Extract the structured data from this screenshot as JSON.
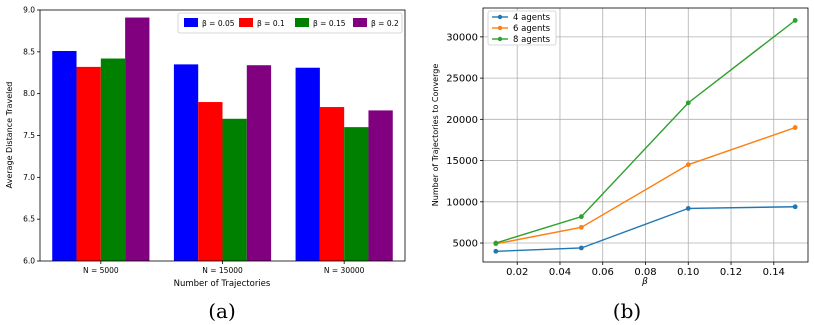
{
  "chart_data": [
    {
      "type": "bar",
      "caption": "(a)",
      "title": "",
      "xlabel": "Number of Trajectories",
      "ylabel": "Average Distance Traveled",
      "categories": [
        "N = 5000",
        "N = 15000",
        "N = 30000"
      ],
      "series": [
        {
          "name": "β = 0.05",
          "color": "#0000ff",
          "values": [
            8.51,
            8.35,
            8.31
          ]
        },
        {
          "name": "β = 0.1",
          "color": "#ff0000",
          "values": [
            8.32,
            7.9,
            7.84
          ]
        },
        {
          "name": "β = 0.15",
          "color": "#008000",
          "values": [
            8.42,
            7.7,
            7.6
          ]
        },
        {
          "name": "β = 0.2",
          "color": "#800080",
          "values": [
            8.91,
            8.34,
            7.8
          ]
        }
      ],
      "ylim": [
        6.0,
        9.0
      ],
      "yticks": [
        "6.0",
        "6.5",
        "7.0",
        "7.5",
        "8.0",
        "8.5",
        "9.0"
      ],
      "grid": false,
      "legend": "top-right, horizontal"
    },
    {
      "type": "line",
      "caption": "(b)",
      "title": "",
      "xlabel": "β",
      "ylabel": "Number of Trajectories to Converge",
      "x": [
        0.01,
        0.05,
        0.1,
        0.15
      ],
      "series": [
        {
          "name": "4 agents",
          "color": "#1f77b4",
          "values": [
            4000,
            4400,
            9200,
            9400
          ]
        },
        {
          "name": "6 agents",
          "color": "#ff7f0e",
          "values": [
            4900,
            6900,
            14500,
            19000
          ]
        },
        {
          "name": "8 agents",
          "color": "#2ca02c",
          "values": [
            5000,
            8200,
            22000,
            32000
          ]
        }
      ],
      "xlim": [
        0.004,
        0.156
      ],
      "ylim": [
        2700,
        33500
      ],
      "xticks": [
        "0.02",
        "0.04",
        "0.06",
        "0.08",
        "0.10",
        "0.12",
        "0.14"
      ],
      "yticks": [
        "5000",
        "10000",
        "15000",
        "20000",
        "25000",
        "30000"
      ],
      "grid": true,
      "legend": "top-left"
    }
  ]
}
